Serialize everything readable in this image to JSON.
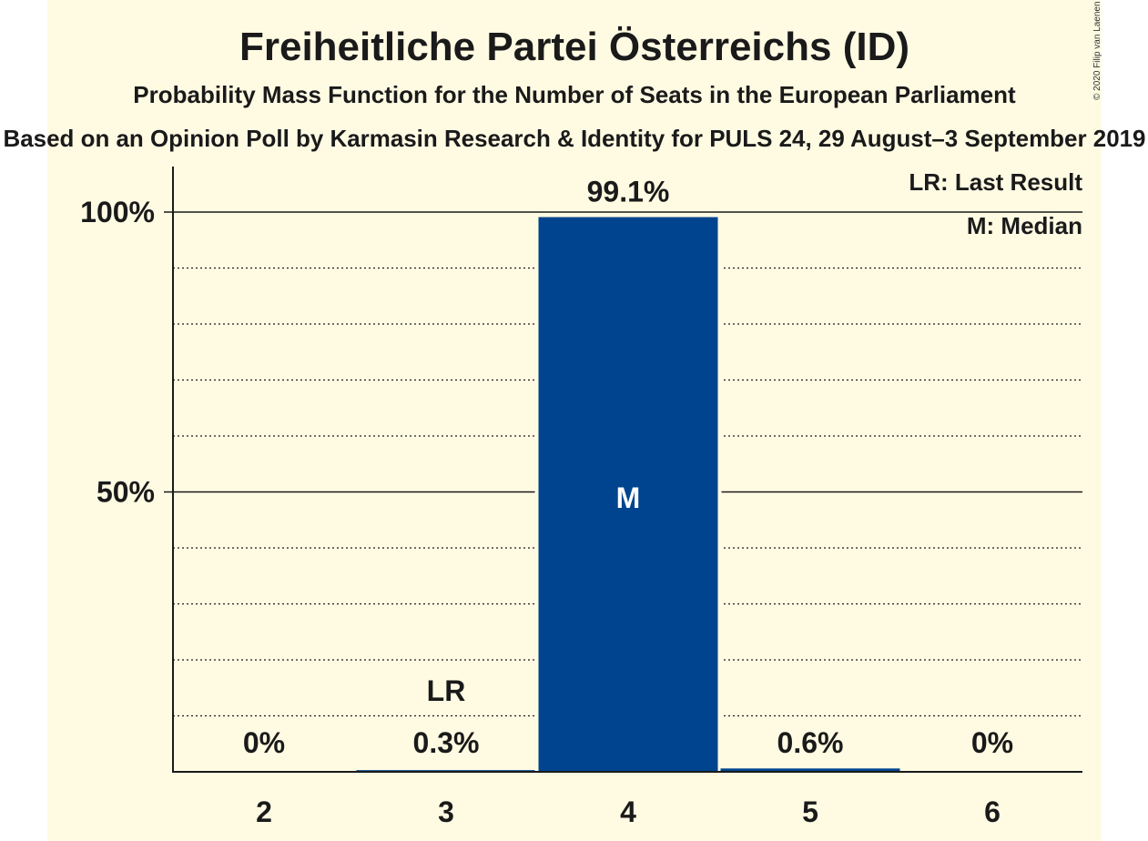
{
  "title": "Freiheitliche Partei Österreichs (ID)",
  "subtitle": "Probability Mass Function for the Number of Seats in the European Parliament",
  "source_line": "Based on an Opinion Poll by Karmasin Research & Identity for PULS 24, 29 August–3 September 2019",
  "copyright": "© 2020 Filip van Laenen",
  "legend": {
    "last_result": "LR: Last Result",
    "median": "M: Median"
  },
  "colors": {
    "bar": "#00448f",
    "background": "#fffbe3"
  },
  "chart_data": {
    "type": "bar",
    "categories": [
      "2",
      "3",
      "4",
      "5",
      "6"
    ],
    "values": [
      0,
      0.3,
      99.1,
      0.6,
      0
    ],
    "data_labels": [
      "0%",
      "0.3%",
      "99.1%",
      "0.6%",
      "0%"
    ],
    "ylim": [
      0,
      100
    ],
    "yticks": [
      {
        "value": 50,
        "label": "50%"
      },
      {
        "value": 100,
        "label": "100%"
      }
    ],
    "minor_gridlines": [
      10,
      20,
      30,
      40,
      60,
      70,
      80,
      90
    ],
    "last_result": {
      "category": "3",
      "label": "LR"
    },
    "median": {
      "category": "4",
      "label": "M"
    },
    "grid": true,
    "legend_position": "top-right"
  }
}
